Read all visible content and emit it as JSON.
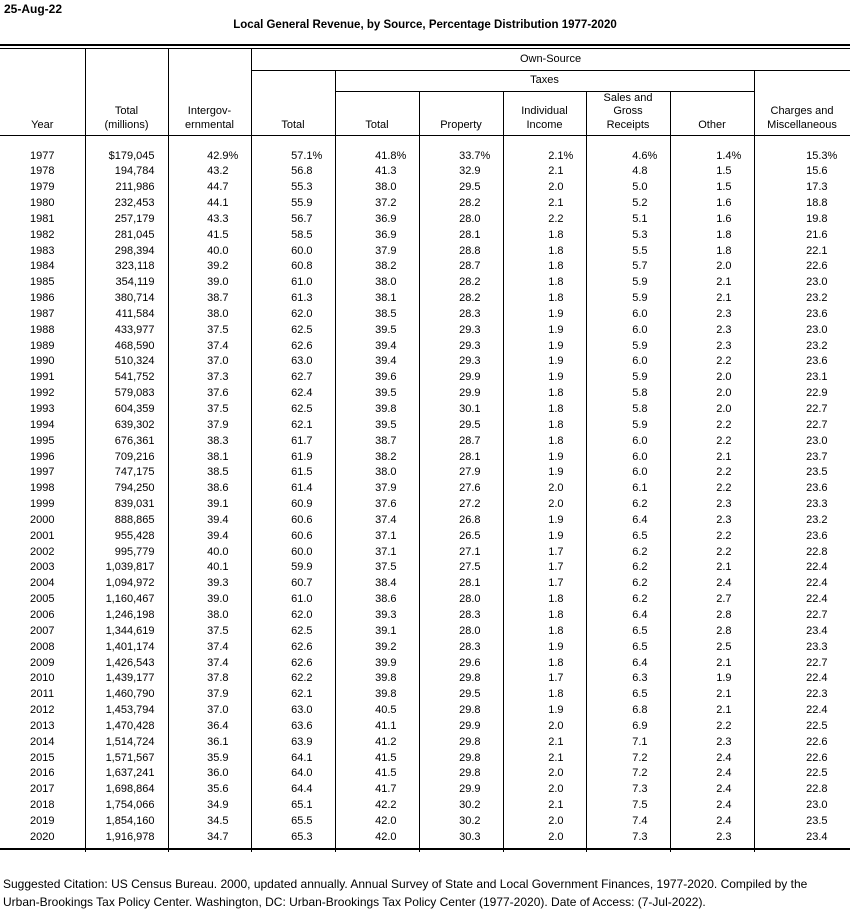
{
  "page": {
    "date": "25-Aug-22",
    "title": "Local General Revenue, by Source, Percentage Distribution 1977-2020"
  },
  "table": {
    "group_headers": {
      "own_source": "Own-Source",
      "taxes": "Taxes"
    },
    "columns": [
      "Year",
      "Total\n(millions)",
      "Intergov-\nernmental",
      "Total",
      "Total",
      "Property",
      "Individual\nIncome",
      "Sales and\nGross\nReceipts",
      "Other",
      "Charges and\nMiscellaneous"
    ],
    "column_ids": [
      "year",
      "total-millions",
      "intergovernmental",
      "own-source-total",
      "taxes-total",
      "property",
      "individual-income",
      "sales-gross-receipts",
      "other",
      "charges-miscellaneous"
    ],
    "rows": [
      [
        "1977",
        "$179,045",
        "42.9%",
        "57.1%",
        "41.8%",
        "33.7%",
        "2.1%",
        "4.6%",
        "1.4%",
        "15.3%"
      ],
      [
        "1978",
        "194,784",
        "43.2",
        "56.8",
        "41.3",
        "32.9",
        "2.1",
        "4.8",
        "1.5",
        "15.6"
      ],
      [
        "1979",
        "211,986",
        "44.7",
        "55.3",
        "38.0",
        "29.5",
        "2.0",
        "5.0",
        "1.5",
        "17.3"
      ],
      [
        "1980",
        "232,453",
        "44.1",
        "55.9",
        "37.2",
        "28.2",
        "2.1",
        "5.2",
        "1.6",
        "18.8"
      ],
      [
        "1981",
        "257,179",
        "43.3",
        "56.7",
        "36.9",
        "28.0",
        "2.2",
        "5.1",
        "1.6",
        "19.8"
      ],
      [
        "1982",
        "281,045",
        "41.5",
        "58.5",
        "36.9",
        "28.1",
        "1.8",
        "5.3",
        "1.8",
        "21.6"
      ],
      [
        "1983",
        "298,394",
        "40.0",
        "60.0",
        "37.9",
        "28.8",
        "1.8",
        "5.5",
        "1.8",
        "22.1"
      ],
      [
        "1984",
        "323,118",
        "39.2",
        "60.8",
        "38.2",
        "28.7",
        "1.8",
        "5.7",
        "2.0",
        "22.6"
      ],
      [
        "1985",
        "354,119",
        "39.0",
        "61.0",
        "38.0",
        "28.2",
        "1.8",
        "5.9",
        "2.1",
        "23.0"
      ],
      [
        "1986",
        "380,714",
        "38.7",
        "61.3",
        "38.1",
        "28.2",
        "1.8",
        "5.9",
        "2.1",
        "23.2"
      ],
      [
        "1987",
        "411,584",
        "38.0",
        "62.0",
        "38.5",
        "28.3",
        "1.9",
        "6.0",
        "2.3",
        "23.6"
      ],
      [
        "1988",
        "433,977",
        "37.5",
        "62.5",
        "39.5",
        "29.3",
        "1.9",
        "6.0",
        "2.3",
        "23.0"
      ],
      [
        "1989",
        "468,590",
        "37.4",
        "62.6",
        "39.4",
        "29.3",
        "1.9",
        "5.9",
        "2.3",
        "23.2"
      ],
      [
        "1990",
        "510,324",
        "37.0",
        "63.0",
        "39.4",
        "29.3",
        "1.9",
        "6.0",
        "2.2",
        "23.6"
      ],
      [
        "1991",
        "541,752",
        "37.3",
        "62.7",
        "39.6",
        "29.9",
        "1.9",
        "5.9",
        "2.0",
        "23.1"
      ],
      [
        "1992",
        "579,083",
        "37.6",
        "62.4",
        "39.5",
        "29.9",
        "1.8",
        "5.8",
        "2.0",
        "22.9"
      ],
      [
        "1993",
        "604,359",
        "37.5",
        "62.5",
        "39.8",
        "30.1",
        "1.8",
        "5.8",
        "2.0",
        "22.7"
      ],
      [
        "1994",
        "639,302",
        "37.9",
        "62.1",
        "39.5",
        "29.5",
        "1.8",
        "5.9",
        "2.2",
        "22.7"
      ],
      [
        "1995",
        "676,361",
        "38.3",
        "61.7",
        "38.7",
        "28.7",
        "1.8",
        "6.0",
        "2.2",
        "23.0"
      ],
      [
        "1996",
        "709,216",
        "38.1",
        "61.9",
        "38.2",
        "28.1",
        "1.9",
        "6.0",
        "2.1",
        "23.7"
      ],
      [
        "1997",
        "747,175",
        "38.5",
        "61.5",
        "38.0",
        "27.9",
        "1.9",
        "6.0",
        "2.2",
        "23.5"
      ],
      [
        "1998",
        "794,250",
        "38.6",
        "61.4",
        "37.9",
        "27.6",
        "2.0",
        "6.1",
        "2.2",
        "23.6"
      ],
      [
        "1999",
        "839,031",
        "39.1",
        "60.9",
        "37.6",
        "27.2",
        "2.0",
        "6.2",
        "2.3",
        "23.3"
      ],
      [
        "2000",
        "888,865",
        "39.4",
        "60.6",
        "37.4",
        "26.8",
        "1.9",
        "6.4",
        "2.3",
        "23.2"
      ],
      [
        "2001",
        "955,428",
        "39.4",
        "60.6",
        "37.1",
        "26.5",
        "1.9",
        "6.5",
        "2.2",
        "23.6"
      ],
      [
        "2002",
        "995,779",
        "40.0",
        "60.0",
        "37.1",
        "27.1",
        "1.7",
        "6.2",
        "2.2",
        "22.8"
      ],
      [
        "2003",
        "1,039,817",
        "40.1",
        "59.9",
        "37.5",
        "27.5",
        "1.7",
        "6.2",
        "2.1",
        "22.4"
      ],
      [
        "2004",
        "1,094,972",
        "39.3",
        "60.7",
        "38.4",
        "28.1",
        "1.7",
        "6.2",
        "2.4",
        "22.4"
      ],
      [
        "2005",
        "1,160,467",
        "39.0",
        "61.0",
        "38.6",
        "28.0",
        "1.8",
        "6.2",
        "2.7",
        "22.4"
      ],
      [
        "2006",
        "1,246,198",
        "38.0",
        "62.0",
        "39.3",
        "28.3",
        "1.8",
        "6.4",
        "2.8",
        "22.7"
      ],
      [
        "2007",
        "1,344,619",
        "37.5",
        "62.5",
        "39.1",
        "28.0",
        "1.8",
        "6.5",
        "2.8",
        "23.4"
      ],
      [
        "2008",
        "1,401,174",
        "37.4",
        "62.6",
        "39.2",
        "28.3",
        "1.9",
        "6.5",
        "2.5",
        "23.3"
      ],
      [
        "2009",
        "1,426,543",
        "37.4",
        "62.6",
        "39.9",
        "29.6",
        "1.8",
        "6.4",
        "2.1",
        "22.7"
      ],
      [
        "2010",
        "1,439,177",
        "37.8",
        "62.2",
        "39.8",
        "29.8",
        "1.7",
        "6.3",
        "1.9",
        "22.4"
      ],
      [
        "2011",
        "1,460,790",
        "37.9",
        "62.1",
        "39.8",
        "29.5",
        "1.8",
        "6.5",
        "2.1",
        "22.3"
      ],
      [
        "2012",
        "1,453,794",
        "37.0",
        "63.0",
        "40.5",
        "29.8",
        "1.9",
        "6.8",
        "2.1",
        "22.4"
      ],
      [
        "2013",
        "1,470,428",
        "36.4",
        "63.6",
        "41.1",
        "29.9",
        "2.0",
        "6.9",
        "2.2",
        "22.5"
      ],
      [
        "2014",
        "1,514,724",
        "36.1",
        "63.9",
        "41.2",
        "29.8",
        "2.1",
        "7.1",
        "2.3",
        "22.6"
      ],
      [
        "2015",
        "1,571,567",
        "35.9",
        "64.1",
        "41.5",
        "29.8",
        "2.1",
        "7.2",
        "2.4",
        "22.6"
      ],
      [
        "2016",
        "1,637,241",
        "36.0",
        "64.0",
        "41.5",
        "29.8",
        "2.0",
        "7.2",
        "2.4",
        "22.5"
      ],
      [
        "2017",
        "1,698,864",
        "35.6",
        "64.4",
        "41.7",
        "29.9",
        "2.0",
        "7.3",
        "2.4",
        "22.8"
      ],
      [
        "2018",
        "1,754,066",
        "34.9",
        "65.1",
        "42.2",
        "30.2",
        "2.1",
        "7.5",
        "2.4",
        "23.0"
      ],
      [
        "2019",
        "1,854,160",
        "34.5",
        "65.5",
        "42.0",
        "30.2",
        "2.0",
        "7.4",
        "2.4",
        "23.5"
      ],
      [
        "2020",
        "1,916,978",
        "34.7",
        "65.3",
        "42.0",
        "30.3",
        "2.0",
        "7.3",
        "2.3",
        "23.4"
      ]
    ]
  },
  "citation": {
    "line1": "Suggested Citation: US Census Bureau. 2000, updated annually. Annual Survey of State and Local Government Finances, 1977-2020. Compiled by the",
    "line2": "Urban-Brookings Tax Policy Center. Washington, DC: Urban-Brookings Tax Policy Center (1977-2020). Date of Access: (7-Jul-2022)."
  }
}
